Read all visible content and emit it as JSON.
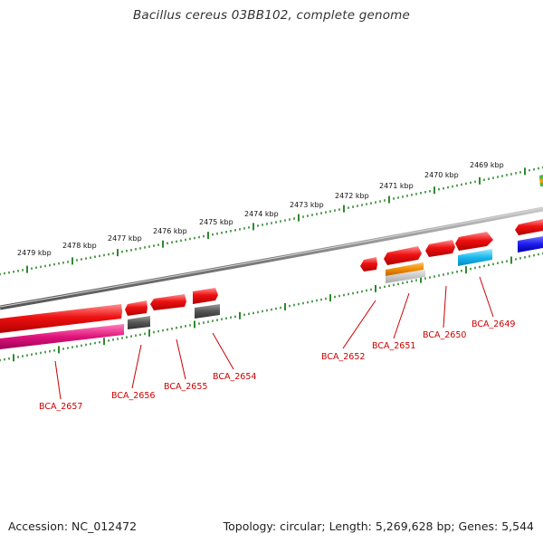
{
  "title": "Bacillus cereus 03BB102, complete genome",
  "footer": {
    "accession": "Accession: NC_012472",
    "summary": "Topology: circular; Length: 5,269,628 bp; Genes: 5,544"
  },
  "colors": {
    "backbone": "#7f7f7f",
    "tick": "#2f8a2f",
    "gene_red": "#ee1111",
    "gene_magenta": "#e0147a",
    "gene_grey": "#555555",
    "gene_orange": "#f08c00",
    "gene_cyan": "#18b8ec",
    "gene_blue": "#1a1aee",
    "label_red": "#cc0000"
  },
  "scale": {
    "unit": "kbp",
    "labels": [
      {
        "kbp": 2479,
        "text": "2479 kbp"
      },
      {
        "kbp": 2478,
        "text": "2478 kbp"
      },
      {
        "kbp": 2477,
        "text": "2477 kbp"
      },
      {
        "kbp": 2476,
        "text": "2476 kbp"
      },
      {
        "kbp": 2475,
        "text": "2475 kbp"
      },
      {
        "kbp": 2474,
        "text": "2474 kbp"
      },
      {
        "kbp": 2473,
        "text": "2473 kbp"
      },
      {
        "kbp": 2472,
        "text": "2472 kbp"
      },
      {
        "kbp": 2471,
        "text": "2471 kbp"
      },
      {
        "kbp": 2470,
        "text": "2470 kbp"
      },
      {
        "kbp": 2469,
        "text": "2469 kbp"
      }
    ]
  },
  "gene_labels": [
    {
      "name": "BCA_2657"
    },
    {
      "name": "BCA_2656"
    },
    {
      "name": "BCA_2655"
    },
    {
      "name": "BCA_2654"
    },
    {
      "name": "BCA_2652"
    },
    {
      "name": "BCA_2651"
    },
    {
      "name": "BCA_2650"
    },
    {
      "name": "BCA_2649"
    }
  ]
}
